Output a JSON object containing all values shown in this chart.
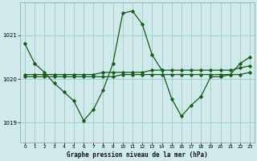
{
  "title": "Graphe pression niveau de la mer (hPa)",
  "background_color": "#ceeaea",
  "grid_color": "#aacccc",
  "line_color": "#1a5c1a",
  "xlim": [
    -0.5,
    23.5
  ],
  "ylim": [
    1018.55,
    1021.75
  ],
  "yticks": [
    1019,
    1020,
    1021
  ],
  "xticks": [
    0,
    1,
    2,
    3,
    4,
    5,
    6,
    7,
    8,
    9,
    10,
    11,
    12,
    13,
    14,
    15,
    16,
    17,
    18,
    19,
    20,
    21,
    22,
    23
  ],
  "series1_x": [
    0,
    1,
    2,
    3,
    4,
    5,
    6,
    7,
    8,
    9,
    10,
    11,
    12,
    13,
    14,
    15,
    16,
    17,
    18,
    19,
    20,
    21,
    22,
    23
  ],
  "series1_y": [
    1020.8,
    1020.35,
    1020.15,
    1019.9,
    1019.7,
    1019.5,
    1019.05,
    1019.3,
    1019.75,
    1020.35,
    1021.5,
    1021.55,
    1021.25,
    1020.55,
    1020.2,
    1019.55,
    1019.15,
    1019.4,
    1019.6,
    1020.05,
    1020.05,
    1020.1,
    1020.35,
    1020.5
  ],
  "series2_x": [
    0,
    1,
    2,
    3,
    4,
    5,
    6,
    7,
    8,
    9,
    10,
    11,
    12,
    13,
    14,
    15,
    16,
    17,
    18,
    19,
    20,
    21,
    22,
    23
  ],
  "series2_y": [
    1020.1,
    1020.1,
    1020.1,
    1020.1,
    1020.1,
    1020.1,
    1020.1,
    1020.1,
    1020.15,
    1020.15,
    1020.15,
    1020.15,
    1020.15,
    1020.2,
    1020.2,
    1020.2,
    1020.2,
    1020.2,
    1020.2,
    1020.2,
    1020.2,
    1020.2,
    1020.25,
    1020.3
  ],
  "series3_x": [
    0,
    1,
    2,
    3,
    4,
    5,
    6,
    7,
    8,
    9,
    10,
    11,
    12,
    13,
    14,
    15,
    16,
    17,
    18,
    19,
    20,
    21,
    22,
    23
  ],
  "series3_y": [
    1020.05,
    1020.05,
    1020.05,
    1020.05,
    1020.05,
    1020.05,
    1020.05,
    1020.05,
    1020.05,
    1020.05,
    1020.1,
    1020.1,
    1020.1,
    1020.1,
    1020.1,
    1020.1,
    1020.1,
    1020.1,
    1020.1,
    1020.1,
    1020.1,
    1020.1,
    1020.1,
    1020.15
  ]
}
